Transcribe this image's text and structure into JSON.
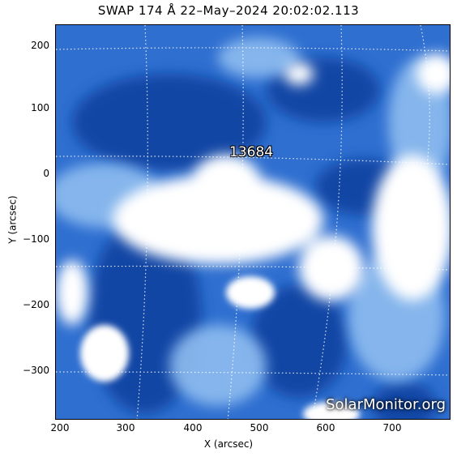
{
  "title": "SWAP 174 Å 22–May–2024 20:02:02.113",
  "axes": {
    "xlabel": "X (arcsec)",
    "ylabel": "Y (arcsec)",
    "xticks": [
      "200",
      "300",
      "400",
      "500",
      "600",
      "700"
    ],
    "yticks": [
      "200",
      "100",
      "0",
      "−100",
      "−200",
      "−300"
    ]
  },
  "region_label": "13684",
  "watermark": "SolarMonitor.org",
  "colors": {
    "deep_blue": "#0b3f9e",
    "mid_blue": "#2f6fd0",
    "light_blue": "#8fbdf0",
    "white": "#ffffff"
  }
}
